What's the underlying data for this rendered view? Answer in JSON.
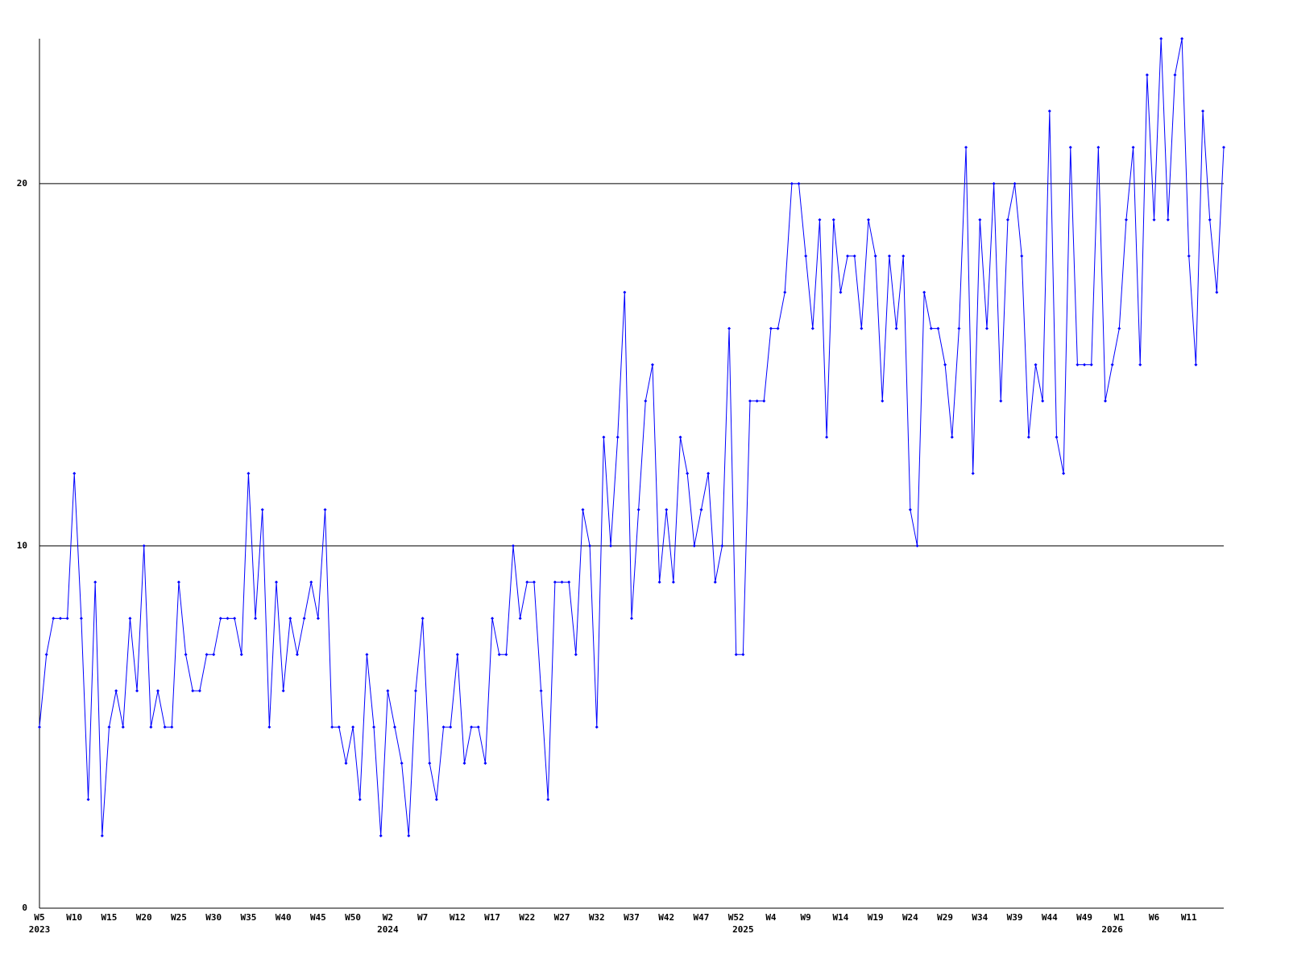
{
  "chart_data": {
    "type": "line",
    "categories": [
      "W5",
      null,
      null,
      null,
      null,
      "W10",
      null,
      null,
      null,
      null,
      "W15",
      null,
      null,
      null,
      null,
      "W20",
      null,
      null,
      null,
      null,
      "W25",
      null,
      null,
      null,
      null,
      "W30",
      null,
      null,
      null,
      null,
      "W35",
      null,
      null,
      null,
      null,
      "W40",
      null,
      null,
      null,
      null,
      "W45",
      null,
      null,
      null,
      null,
      "W50",
      null,
      null,
      null,
      null,
      "W2",
      null,
      null,
      null,
      null,
      "W7",
      null,
      null,
      null,
      null,
      "W12",
      null,
      null,
      null,
      null,
      "W17",
      null,
      null,
      null,
      null,
      "W22",
      null,
      null,
      null,
      null,
      "W27",
      null,
      null,
      null,
      null,
      "W32",
      null,
      null,
      null,
      null,
      "W37",
      null,
      null,
      null,
      null,
      "W42",
      null,
      null,
      null,
      null,
      "W47",
      null,
      null,
      null,
      null,
      "W52",
      null,
      null,
      null,
      null,
      "W4",
      null,
      null,
      null,
      null,
      "W9",
      null,
      null,
      null,
      null,
      "W14",
      null,
      null,
      null,
      null,
      "W19",
      null,
      null,
      null,
      null,
      "W24",
      null,
      null,
      null,
      null,
      "W29",
      null,
      null,
      null,
      null,
      "W34",
      null,
      null,
      null,
      null,
      "W39",
      null,
      null,
      null,
      null,
      "W44",
      null,
      null,
      null,
      null,
      "W49",
      null,
      null,
      null,
      null,
      "W1",
      null,
      null,
      null,
      null,
      "W6",
      null,
      null,
      null,
      null,
      "W11",
      null,
      null,
      null,
      null,
      null
    ],
    "category_years": [
      "2023",
      null,
      null,
      null,
      null,
      null,
      null,
      null,
      null,
      null,
      null,
      null,
      null,
      null,
      null,
      null,
      null,
      null,
      null,
      null,
      null,
      null,
      null,
      null,
      null,
      null,
      null,
      null,
      null,
      null,
      null,
      null,
      null,
      null,
      null,
      null,
      null,
      null,
      null,
      null,
      null,
      null,
      null,
      null,
      null,
      null,
      null,
      null,
      null,
      null,
      "2024",
      null,
      null,
      null,
      null,
      null,
      null,
      null,
      null,
      null,
      null,
      null,
      null,
      null,
      null,
      null,
      null,
      null,
      null,
      null,
      null,
      null,
      null,
      null,
      null,
      null,
      null,
      null,
      null,
      null,
      null,
      null,
      null,
      null,
      null,
      null,
      null,
      null,
      null,
      null,
      null,
      null,
      null,
      null,
      null,
      null,
      null,
      null,
      null,
      null,
      null,
      "2025",
      null,
      null,
      null,
      null,
      null,
      null,
      null,
      null,
      null,
      null,
      null,
      null,
      null,
      null,
      null,
      null,
      null,
      null,
      null,
      null,
      null,
      null,
      null,
      null,
      null,
      null,
      null,
      null,
      null,
      null,
      null,
      null,
      null,
      null,
      null,
      null,
      null,
      null,
      null,
      null,
      null,
      null,
      null,
      null,
      null,
      null,
      null,
      null,
      null,
      null,
      null,
      null,
      "2026",
      null,
      null,
      null,
      null,
      null,
      null,
      null,
      null,
      null,
      null,
      null,
      null,
      null,
      null,
      null
    ],
    "series": [
      {
        "color": "#0000ff",
        "values": [
          5,
          7,
          8,
          8,
          8,
          12,
          8,
          3,
          9,
          2,
          5,
          6,
          5,
          8,
          6,
          10,
          5,
          6,
          5,
          5,
          9,
          7,
          6,
          6,
          7,
          7,
          8,
          8,
          8,
          7,
          12,
          8,
          11,
          5,
          9,
          6,
          8,
          7,
          8,
          9,
          8,
          11,
          5,
          5,
          4,
          5,
          3,
          7,
          5,
          2,
          6,
          5,
          4,
          2,
          6,
          8,
          4,
          3,
          5,
          5,
          7,
          4,
          5,
          5,
          4,
          8,
          7,
          7,
          10,
          8,
          9,
          9,
          6,
          3,
          9,
          9,
          9,
          7,
          11,
          10,
          5,
          13,
          10,
          13,
          17,
          8,
          11,
          14,
          15,
          9,
          11,
          9,
          13,
          12,
          10,
          11,
          12,
          9,
          10,
          16,
          7,
          7,
          14,
          14,
          14,
          16,
          16,
          17,
          20,
          20,
          18,
          16,
          19,
          13,
          19,
          17,
          18,
          18,
          16,
          19,
          18,
          14,
          18,
          16,
          18,
          11,
          10,
          17,
          16,
          16,
          15,
          13,
          16,
          21,
          12,
          19,
          16,
          20,
          14,
          19,
          20,
          18,
          13,
          15,
          14,
          22,
          13,
          12,
          21,
          15,
          15,
          15,
          21,
          14,
          15,
          16,
          19,
          21,
          15,
          23,
          19,
          24,
          19,
          23,
          24,
          18,
          15,
          22,
          19,
          17,
          21
        ]
      }
    ],
    "ylim": [
      0,
      24
    ],
    "yticks": [
      0,
      10,
      20
    ],
    "grid": true
  }
}
